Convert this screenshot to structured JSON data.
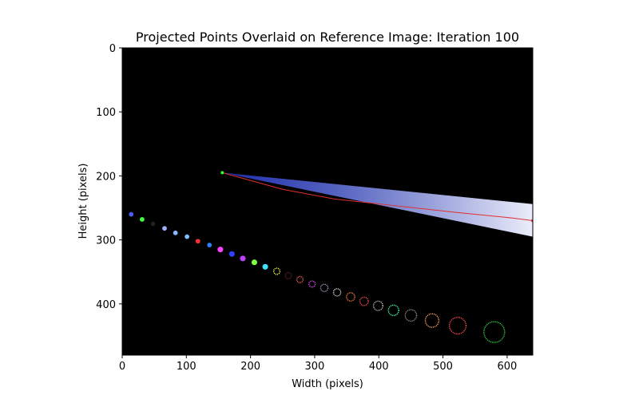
{
  "chart_data": {
    "type": "scatter",
    "title": "Projected Points Overlaid on Reference Image: Iteration 100",
    "xlabel": "Width (pixels)",
    "ylabel": "Height (pixels)",
    "xlim": [
      0,
      640
    ],
    "ylim": [
      480,
      0
    ],
    "y_axis_inverted": true,
    "grid": false,
    "background": "#000000",
    "x_ticks": [
      0,
      100,
      200,
      300,
      400,
      500,
      600
    ],
    "y_ticks": [
      0,
      100,
      200,
      300,
      400
    ],
    "reference_line": {
      "color": "#e03030",
      "points": [
        [
          156,
          195
        ],
        [
          250,
          221
        ],
        [
          330,
          236
        ],
        [
          420,
          246
        ],
        [
          520,
          257
        ],
        [
          610,
          266
        ],
        [
          640,
          270
        ]
      ]
    },
    "beam": {
      "color": "#a8b0f0",
      "apex": [
        156,
        195
      ],
      "upper_end": [
        640,
        244
      ],
      "lower_end": [
        640,
        295
      ]
    },
    "projected_points": [
      {
        "x": 14,
        "y": 260,
        "r": 2,
        "color": "#4a5cff"
      },
      {
        "x": 31,
        "y": 268,
        "r": 2,
        "color": "#40ff40"
      },
      {
        "x": 48,
        "y": 275,
        "r": 2,
        "color": "#202020"
      },
      {
        "x": 66,
        "y": 282,
        "r": 2,
        "color": "#9fb0ff"
      },
      {
        "x": 83,
        "y": 289,
        "r": 2,
        "color": "#88b8ff"
      },
      {
        "x": 101,
        "y": 295,
        "r": 2,
        "color": "#80c0ff"
      },
      {
        "x": 118,
        "y": 302,
        "r": 2,
        "color": "#ff3030"
      },
      {
        "x": 136,
        "y": 308,
        "r": 2,
        "color": "#3080ff"
      },
      {
        "x": 153,
        "y": 315,
        "r": 2.5,
        "color": "#ff40ff"
      },
      {
        "x": 171,
        "y": 322,
        "r": 2.5,
        "color": "#3040ff"
      },
      {
        "x": 188,
        "y": 329,
        "r": 2.5,
        "color": "#c040ff"
      },
      {
        "x": 206,
        "y": 335,
        "r": 2.5,
        "color": "#80ff40"
      },
      {
        "x": 223,
        "y": 342,
        "r": 2.5,
        "color": "#40e0ff"
      },
      {
        "x": 241,
        "y": 349,
        "r": 3,
        "color": "#ffff40"
      },
      {
        "x": 259,
        "y": 356,
        "r": 3,
        "color": "#602020"
      },
      {
        "x": 277,
        "y": 362,
        "r": 3,
        "color": "#ff6060"
      },
      {
        "x": 296,
        "y": 369,
        "r": 3,
        "color": "#e040ff"
      },
      {
        "x": 315,
        "y": 375,
        "r": 3.5,
        "color": "#a0a0c0"
      },
      {
        "x": 335,
        "y": 382,
        "r": 3.5,
        "color": "#e0e0e0"
      },
      {
        "x": 356,
        "y": 389,
        "r": 4,
        "color": "#ff8040"
      },
      {
        "x": 377,
        "y": 396,
        "r": 4,
        "color": "#ff5050"
      },
      {
        "x": 399,
        "y": 403,
        "r": 4.5,
        "color": "#c0c0c0"
      },
      {
        "x": 423,
        "y": 410,
        "r": 5,
        "color": "#40ffa0"
      },
      {
        "x": 450,
        "y": 418,
        "r": 5.5,
        "color": "#a09080"
      },
      {
        "x": 483,
        "y": 426,
        "r": 6.5,
        "color": "#ffa060"
      },
      {
        "x": 523,
        "y": 434,
        "r": 8,
        "color": "#ff5050"
      },
      {
        "x": 580,
        "y": 444,
        "r": 10,
        "color": "#30d040"
      }
    ]
  }
}
